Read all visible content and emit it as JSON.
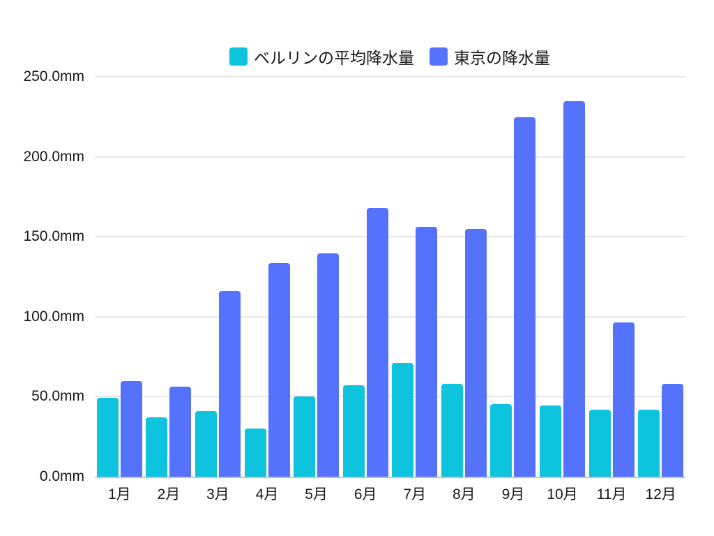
{
  "chart_data": {
    "type": "bar",
    "title": "",
    "xlabel": "",
    "ylabel": "",
    "unit": "mm",
    "categories": [
      "1月",
      "2月",
      "3月",
      "4月",
      "5月",
      "6月",
      "7月",
      "8月",
      "9月",
      "10月",
      "11月",
      "12月"
    ],
    "series": [
      {
        "key": "berlin",
        "name": "ベルリンの平均降水量",
        "color": "#0dc3dd",
        "values": [
          49.5,
          37,
          41,
          30,
          50,
          57,
          71,
          58,
          45.5,
          44.5,
          42,
          42
        ]
      },
      {
        "key": "tokyo",
        "name": "東京の降水量",
        "color": "#5472fb",
        "values": [
          59.7,
          56.5,
          116.0,
          133.7,
          139.7,
          167.8,
          156.2,
          154.7,
          224.9,
          234.8,
          96.3,
          57.9
        ]
      }
    ],
    "ylim": [
      0,
      250
    ],
    "yticks": [
      {
        "value": 0,
        "label": "0.0mm"
      },
      {
        "value": 50,
        "label": "50.0mm"
      },
      {
        "value": 100,
        "label": "100.0mm"
      },
      {
        "value": 150,
        "label": "150.0mm"
      },
      {
        "value": 200,
        "label": "200.0mm"
      },
      {
        "value": 250,
        "label": "250.0mm"
      }
    ],
    "grid": true,
    "legend_position": "top-center"
  },
  "colors": {
    "background": "#ffffff",
    "gridline": "#e7e7ea",
    "axis_line": "#bfc2c9",
    "label_text": "#17171c"
  }
}
